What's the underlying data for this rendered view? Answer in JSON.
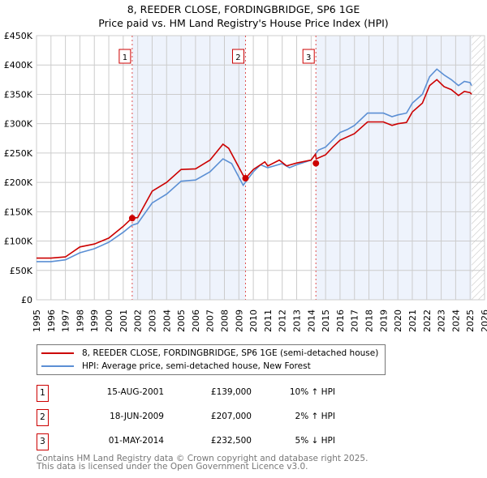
{
  "title": "8, REEDER CLOSE, FORDINGBRIDGE, SP6 1GE",
  "subtitle": "Price paid vs. HM Land Registry's House Price Index (HPI)",
  "chart_data": {
    "type": "line",
    "ylim": [
      0,
      450000
    ],
    "xlim": [
      1995,
      2026
    ],
    "yticks": [
      {
        "v": 0,
        "label": "£0"
      },
      {
        "v": 50000,
        "label": "£50K"
      },
      {
        "v": 100000,
        "label": "£100K"
      },
      {
        "v": 150000,
        "label": "£150K"
      },
      {
        "v": 200000,
        "label": "£200K"
      },
      {
        "v": 250000,
        "label": "£250K"
      },
      {
        "v": 300000,
        "label": "£300K"
      },
      {
        "v": 350000,
        "label": "£350K"
      },
      {
        "v": 400000,
        "label": "£400K"
      },
      {
        "v": 450000,
        "label": "£450K"
      }
    ],
    "xticks": [
      "1995",
      "1996",
      "1997",
      "1998",
      "1999",
      "2000",
      "2001",
      "2002",
      "2003",
      "2004",
      "2005",
      "2006",
      "2007",
      "2008",
      "2009",
      "2010",
      "2011",
      "2012",
      "2013",
      "2014",
      "2015",
      "2016",
      "2017",
      "2018",
      "2019",
      "2020",
      "2021",
      "2022",
      "2023",
      "2024",
      "2025",
      "2026"
    ],
    "data_end": 2025.1,
    "series": [
      {
        "name": "8, REEDER CLOSE, FORDINGBRIDGE, SP6 1GE (semi-detached house)",
        "color": "#cc0000",
        "x": [
          1995,
          1996,
          1997,
          1998,
          1999,
          2000,
          2001,
          2001.6,
          2002,
          2003,
          2004,
          2005,
          2006,
          2007,
          2007.9,
          2008.3,
          2009.3,
          2009.46,
          2010,
          2010.8,
          2011,
          2011.8,
          2012.3,
          2013,
          2014,
          2014.3,
          2014.35,
          2015,
          2015.5,
          2016,
          2017,
          2017.9,
          2019,
          2019.6,
          2020,
          2020.6,
          2021,
          2021.7,
          2022.2,
          2022.7,
          2023.2,
          2023.7,
          2024.2,
          2024.6,
          2025.0,
          2025.1
        ],
        "y": [
          71000,
          71000,
          73000,
          90000,
          95000,
          105000,
          125000,
          139000,
          140000,
          185000,
          200000,
          222000,
          223000,
          238000,
          265000,
          258000,
          212000,
          207000,
          222000,
          235000,
          228000,
          238000,
          228000,
          233000,
          238000,
          248000,
          240000,
          247000,
          260000,
          272000,
          283000,
          303000,
          303000,
          297000,
          300000,
          302000,
          320000,
          335000,
          365000,
          375000,
          363000,
          358000,
          348000,
          355000,
          353000,
          350000
        ]
      },
      {
        "name": "HPI: Average price, semi-detached house, New Forest",
        "color": "#5b8fd4",
        "x": [
          1995,
          1996,
          1997,
          1998,
          1999,
          2000,
          2001,
          2001.6,
          2002,
          2003,
          2004,
          2005,
          2006,
          2007,
          2007.9,
          2008.5,
          2009.3,
          2010,
          2010.5,
          2011,
          2012,
          2012.5,
          2013,
          2014,
          2014.5,
          2015,
          2016,
          2016.5,
          2017,
          2017.9,
          2019,
          2019.6,
          2020,
          2020.6,
          2021,
          2021.7,
          2022.2,
          2022.7,
          2023.2,
          2023.7,
          2024.2,
          2024.6,
          2025.0,
          2025.1
        ],
        "y": [
          65000,
          65000,
          68000,
          80000,
          87000,
          98000,
          115000,
          127000,
          130000,
          165000,
          180000,
          202000,
          204000,
          218000,
          240000,
          232000,
          195000,
          218000,
          230000,
          225000,
          232000,
          225000,
          230000,
          238000,
          255000,
          260000,
          285000,
          290000,
          297000,
          318000,
          318000,
          312000,
          315000,
          318000,
          335000,
          350000,
          380000,
          393000,
          383000,
          375000,
          365000,
          372000,
          370000,
          365000
        ]
      }
    ],
    "sales": [
      {
        "n": "1",
        "x": 2001.62,
        "y": 139000
      },
      {
        "n": "2",
        "x": 2009.46,
        "y": 207000
      },
      {
        "n": "3",
        "x": 2014.33,
        "y": 232500
      }
    ]
  },
  "legend": {
    "series1": "8, REEDER CLOSE, FORDINGBRIDGE, SP6 1GE (semi-detached house)",
    "series2": "HPI: Average price, semi-detached house, New Forest"
  },
  "transactions": [
    {
      "n": "1",
      "date": "15-AUG-2001",
      "price": "£139,000",
      "hpi": "10% ↑ HPI"
    },
    {
      "n": "2",
      "date": "18-JUN-2009",
      "price": "£207,000",
      "hpi": "2% ↑ HPI"
    },
    {
      "n": "3",
      "date": "01-MAY-2014",
      "price": "£232,500",
      "hpi": "5% ↓ HPI"
    }
  ],
  "footer": {
    "line1": "Contains HM Land Registry data © Crown copyright and database right 2025.",
    "line2": "This data is licensed under the Open Government Licence v3.0."
  }
}
